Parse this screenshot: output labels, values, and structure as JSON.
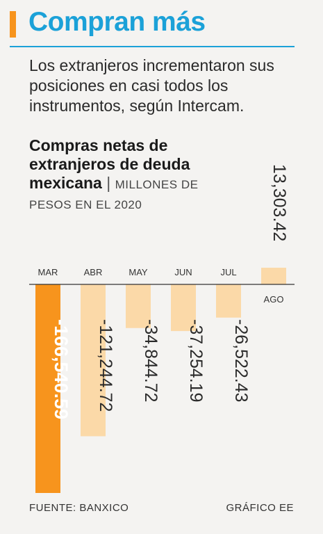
{
  "headline": "Compran más",
  "intro": "Los extranjeros incrementaron sus posiciones en casi todos los instrumentos, según Intercam.",
  "colors": {
    "accent": "#f7941d",
    "brand_blue": "#1ba1d8",
    "bar_light": "#fbd9a8"
  },
  "chart_data": {
    "type": "bar",
    "title": "Compras netas de extranjeros de deuda mexicana",
    "subtitle": "MILLONES DE PESOS EN EL 2020",
    "xlabel": "",
    "ylabel": "",
    "categories": [
      "MAR",
      "ABR",
      "MAY",
      "JUN",
      "JUL",
      "AGO"
    ],
    "values": [
      -166540.59,
      -121244.72,
      -34844.72,
      -37254.19,
      -26522.43,
      13303.42
    ],
    "value_labels": [
      "-166,540.59",
      "-121,244.72",
      "-34,844.72",
      "-37,254.19",
      "-26,522.43",
      "13,303.42"
    ],
    "highlight": "MAR",
    "grid": false,
    "legend": "none"
  },
  "footer": {
    "source": "FUENTE: BANXICO",
    "credit": "GRÁFICO EE"
  }
}
